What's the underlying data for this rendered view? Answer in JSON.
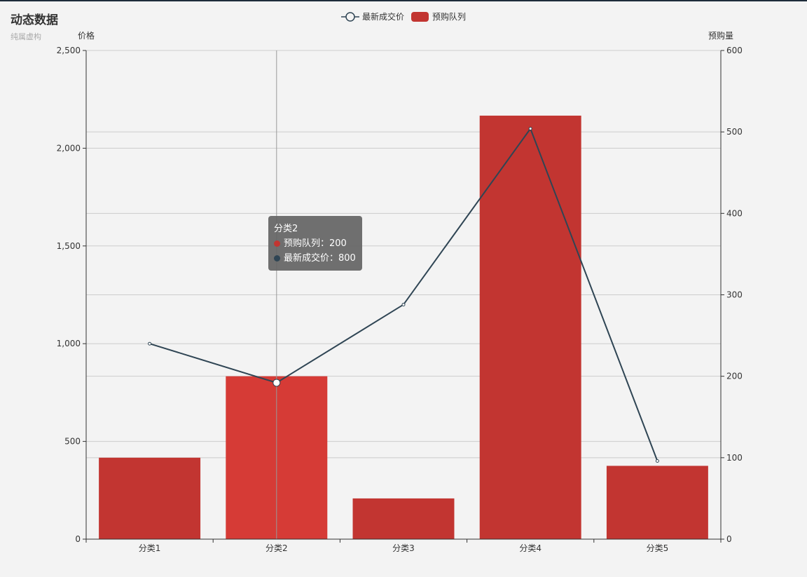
{
  "header": {
    "title": "动态数据",
    "subtitle": "纯属虚构"
  },
  "colors": {
    "bar": "#c23531",
    "bar_highlight": "#d63b36",
    "line": "#2f4554",
    "axis": "#333333",
    "grid": "#cccccc"
  },
  "tooltip": {
    "category": "分类2",
    "bar_text": "预购队列：200",
    "line_text": "最新成交价：800"
  },
  "chart_data": {
    "type": "bar",
    "categories": [
      "分类1",
      "分类2",
      "分类3",
      "分类4",
      "分类5"
    ],
    "series": [
      {
        "name": "预购队列",
        "type": "bar",
        "axis": "right",
        "values": [
          100,
          200,
          50,
          520,
          90
        ]
      },
      {
        "name": "最新成交价",
        "type": "line",
        "axis": "left",
        "values": [
          1000,
          800,
          1200,
          2100,
          400
        ]
      }
    ],
    "y_left": {
      "label": "价格",
      "min": 0,
      "max": 2500,
      "ticks": [
        "0",
        "500",
        "1,000",
        "1,500",
        "2,000",
        "2,500"
      ]
    },
    "y_right": {
      "label": "预购量",
      "min": 0,
      "max": 600,
      "ticks": [
        "0",
        "100",
        "200",
        "300",
        "400",
        "500",
        "600"
      ]
    },
    "legend": [
      "最新成交价",
      "预购队列"
    ],
    "legend_position": "top-center",
    "highlighted_category": "分类2",
    "grid": true
  }
}
